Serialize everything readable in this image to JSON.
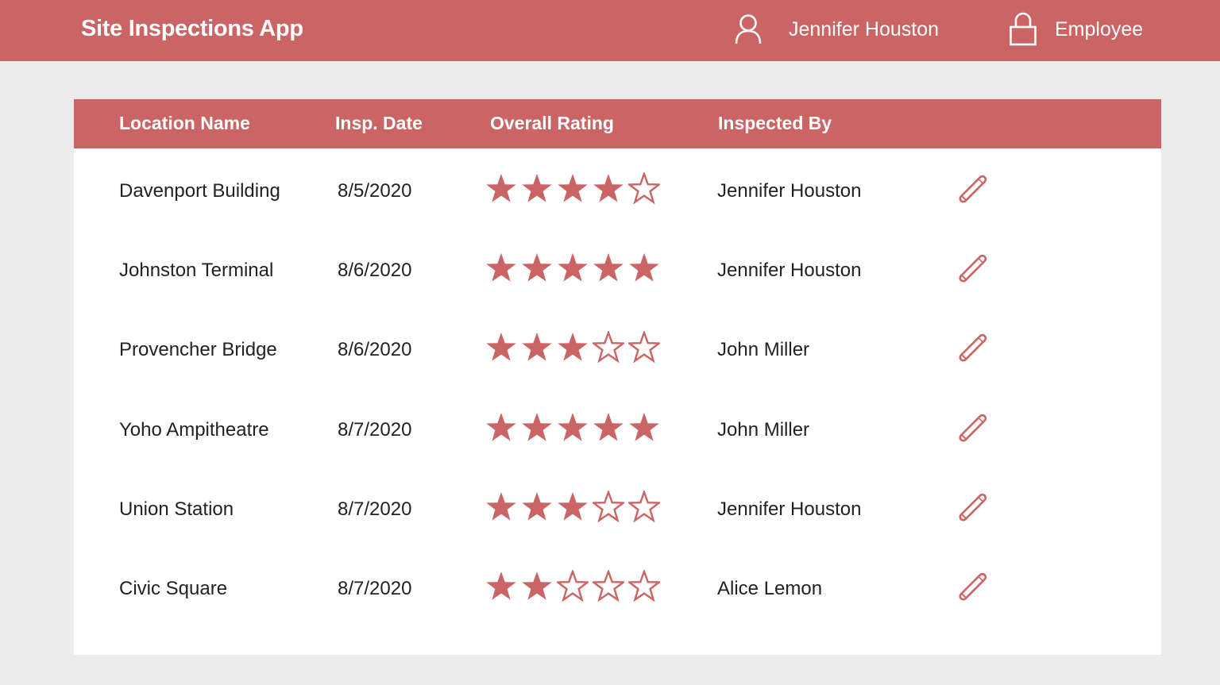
{
  "header": {
    "app_title": "Site Inspections App",
    "user_icon": "user-icon",
    "user_name": "Jennifer Houston",
    "role_icon": "lock-icon",
    "role": "Employee"
  },
  "colors": {
    "accent": "#cb6464",
    "background": "#ececec",
    "card": "#ffffff",
    "text": "#222222"
  },
  "table": {
    "columns": [
      "Location Name",
      "Insp. Date",
      "Overall Rating",
      "Inspected By"
    ],
    "max_rating": 5,
    "rows": [
      {
        "location": "Davenport Building",
        "date": "8/5/2020",
        "rating": 4,
        "inspector": "Jennifer Houston",
        "action_icon": "pencil-icon"
      },
      {
        "location": "Johnston Terminal",
        "date": "8/6/2020",
        "rating": 5,
        "inspector": "Jennifer Houston",
        "action_icon": "pencil-icon"
      },
      {
        "location": "Provencher Bridge",
        "date": "8/6/2020",
        "rating": 3,
        "inspector": "John Miller",
        "action_icon": "pencil-icon"
      },
      {
        "location": "Yoho Ampitheatre",
        "date": "8/7/2020",
        "rating": 5,
        "inspector": "John Miller",
        "action_icon": "pencil-icon"
      },
      {
        "location": "Union Station",
        "date": "8/7/2020",
        "rating": 3,
        "inspector": "Jennifer Houston",
        "action_icon": "pencil-icon"
      },
      {
        "location": "Civic Square",
        "date": "8/7/2020",
        "rating": 2,
        "inspector": "Alice Lemon",
        "action_icon": "pencil-icon"
      }
    ]
  }
}
